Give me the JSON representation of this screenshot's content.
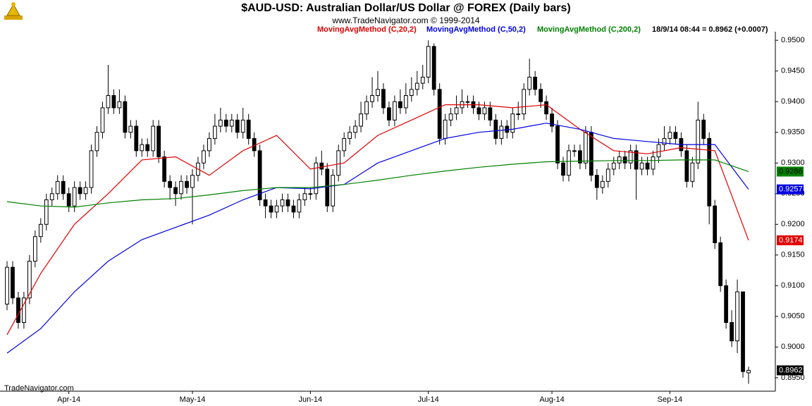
{
  "chart_data": {
    "type": "candlestick",
    "title": "$AUD-USD:  Australian Dollar/US Dollar @ FOREX  (Daily bars)",
    "subtitle": "www.TradeNavigator.com © 1999-2014",
    "quote": "18/9/14 08:44 = 0.8962 (+0.0007)",
    "footer": "TradeNavigator.com",
    "up_color": "#ffffff",
    "down_color": "#000000",
    "categories": [
      null,
      null,
      null,
      null,
      null,
      null,
      null,
      null,
      null,
      null,
      null,
      "Apr-14",
      null,
      null,
      null,
      null,
      null,
      null,
      null,
      null,
      null,
      null,
      null,
      null,
      null,
      null,
      null,
      null,
      null,
      null,
      null,
      null,
      null,
      "May-14",
      null,
      null,
      null,
      null,
      null,
      null,
      null,
      null,
      null,
      null,
      null,
      null,
      null,
      null,
      null,
      null,
      null,
      null,
      null,
      null,
      "Jun-14",
      null,
      null,
      null,
      null,
      null,
      null,
      null,
      null,
      null,
      null,
      null,
      null,
      null,
      null,
      null,
      null,
      null,
      null,
      null,
      null,
      "Jul-14",
      null,
      null,
      null,
      null,
      null,
      null,
      null,
      null,
      null,
      null,
      null,
      null,
      null,
      null,
      null,
      null,
      null,
      null,
      null,
      null,
      null,
      "Aug-14",
      null,
      null,
      null,
      null,
      null,
      null,
      null,
      null,
      null,
      null,
      null,
      null,
      null,
      null,
      null,
      null,
      null,
      null,
      null,
      null,
      "Sep-14",
      null,
      null,
      null,
      null,
      null,
      null,
      null,
      null,
      null,
      null,
      null,
      null,
      null,
      null
    ],
    "ohlc": [
      [
        0.907,
        0.914,
        0.906,
        0.913
      ],
      [
        0.913,
        0.914,
        0.907,
        0.908
      ],
      [
        0.908,
        0.909,
        0.903,
        0.904
      ],
      [
        0.904,
        0.909,
        0.903,
        0.908
      ],
      [
        0.908,
        0.915,
        0.907,
        0.914
      ],
      [
        0.914,
        0.919,
        0.913,
        0.918
      ],
      [
        0.918,
        0.921,
        0.917,
        0.92
      ],
      [
        0.92,
        0.925,
        0.919,
        0.924
      ],
      [
        0.924,
        0.926,
        0.923,
        0.925
      ],
      [
        0.925,
        0.928,
        0.924,
        0.927
      ],
      [
        0.927,
        0.928,
        0.924,
        0.925
      ],
      [
        0.925,
        0.926,
        0.922,
        0.923
      ],
      [
        0.923,
        0.927,
        0.922,
        0.926
      ],
      [
        0.926,
        0.927,
        0.924,
        0.925
      ],
      [
        0.925,
        0.927,
        0.924,
        0.926
      ],
      [
        0.926,
        0.933,
        0.925,
        0.932
      ],
      [
        0.932,
        0.936,
        0.931,
        0.935
      ],
      [
        0.935,
        0.94,
        0.934,
        0.939
      ],
      [
        0.939,
        0.946,
        0.938,
        0.941
      ],
      [
        0.941,
        0.942,
        0.938,
        0.939
      ],
      [
        0.939,
        0.942,
        0.938,
        0.94
      ],
      [
        0.94,
        0.941,
        0.934,
        0.935
      ],
      [
        0.935,
        0.937,
        0.934,
        0.936
      ],
      [
        0.936,
        0.937,
        0.931,
        0.932
      ],
      [
        0.932,
        0.934,
        0.931,
        0.933
      ],
      [
        0.933,
        0.934,
        0.931,
        0.932
      ],
      [
        0.932,
        0.937,
        0.931,
        0.936
      ],
      [
        0.936,
        0.937,
        0.93,
        0.931
      ],
      [
        0.931,
        0.932,
        0.926,
        0.927
      ],
      [
        0.927,
        0.928,
        0.924,
        0.926
      ],
      [
        0.926,
        0.927,
        0.923,
        0.925
      ],
      [
        0.925,
        0.928,
        0.924,
        0.927
      ],
      [
        0.927,
        0.928,
        0.925,
        0.926
      ],
      [
        0.926,
        0.929,
        0.92,
        0.928
      ],
      [
        0.928,
        0.931,
        0.927,
        0.93
      ],
      [
        0.93,
        0.933,
        0.929,
        0.932
      ],
      [
        0.932,
        0.935,
        0.931,
        0.934
      ],
      [
        0.934,
        0.938,
        0.933,
        0.936
      ],
      [
        0.936,
        0.939,
        0.935,
        0.937
      ],
      [
        0.937,
        0.938,
        0.935,
        0.936
      ],
      [
        0.936,
        0.938,
        0.935,
        0.937
      ],
      [
        0.937,
        0.938,
        0.934,
        0.935
      ],
      [
        0.935,
        0.939,
        0.934,
        0.937
      ],
      [
        0.937,
        0.938,
        0.933,
        0.934
      ],
      [
        0.934,
        0.935,
        0.931,
        0.932
      ],
      [
        0.932,
        0.933,
        0.923,
        0.924
      ],
      [
        0.924,
        0.925,
        0.921,
        0.923
      ],
      [
        0.923,
        0.924,
        0.921,
        0.922
      ],
      [
        0.922,
        0.924,
        0.921,
        0.923
      ],
      [
        0.923,
        0.925,
        0.922,
        0.924
      ],
      [
        0.924,
        0.925,
        0.922,
        0.923
      ],
      [
        0.923,
        0.924,
        0.921,
        0.922
      ],
      [
        0.922,
        0.925,
        0.921,
        0.924
      ],
      [
        0.924,
        0.926,
        0.923,
        0.925
      ],
      [
        0.925,
        0.926,
        0.924,
        0.925
      ],
      [
        0.925,
        0.931,
        0.924,
        0.93
      ],
      [
        0.93,
        0.932,
        0.928,
        0.929
      ],
      [
        0.929,
        0.93,
        0.922,
        0.923
      ],
      [
        0.923,
        0.929,
        0.922,
        0.928
      ],
      [
        0.928,
        0.933,
        0.927,
        0.932
      ],
      [
        0.932,
        0.935,
        0.931,
        0.934
      ],
      [
        0.934,
        0.936,
        0.933,
        0.935
      ],
      [
        0.935,
        0.937,
        0.934,
        0.936
      ],
      [
        0.936,
        0.94,
        0.935,
        0.938
      ],
      [
        0.938,
        0.941,
        0.937,
        0.94
      ],
      [
        0.94,
        0.944,
        0.939,
        0.941
      ],
      [
        0.941,
        0.945,
        0.94,
        0.942
      ],
      [
        0.942,
        0.943,
        0.938,
        0.939
      ],
      [
        0.939,
        0.94,
        0.936,
        0.937
      ],
      [
        0.937,
        0.941,
        0.936,
        0.94
      ],
      [
        0.94,
        0.942,
        0.938,
        0.939
      ],
      [
        0.939,
        0.943,
        0.938,
        0.941
      ],
      [
        0.941,
        0.944,
        0.94,
        0.942
      ],
      [
        0.942,
        0.945,
        0.941,
        0.943
      ],
      [
        0.943,
        0.946,
        0.942,
        0.944
      ],
      [
        0.944,
        0.95,
        0.943,
        0.949
      ],
      [
        0.949,
        0.9495,
        0.941,
        0.942
      ],
      [
        0.942,
        0.943,
        0.933,
        0.934
      ],
      [
        0.934,
        0.938,
        0.933,
        0.937
      ],
      [
        0.937,
        0.939,
        0.936,
        0.938
      ],
      [
        0.938,
        0.941,
        0.937,
        0.939
      ],
      [
        0.939,
        0.942,
        0.938,
        0.94
      ],
      [
        0.94,
        0.941,
        0.939,
        0.94
      ],
      [
        0.94,
        0.941,
        0.938,
        0.939
      ],
      [
        0.939,
        0.94,
        0.937,
        0.938
      ],
      [
        0.938,
        0.94,
        0.937,
        0.939
      ],
      [
        0.939,
        0.94,
        0.936,
        0.937
      ],
      [
        0.937,
        0.938,
        0.933,
        0.934
      ],
      [
        0.934,
        0.937,
        0.933,
        0.936
      ],
      [
        0.936,
        0.937,
        0.934,
        0.935
      ],
      [
        0.935,
        0.939,
        0.934,
        0.938
      ],
      [
        0.938,
        0.94,
        0.937,
        0.938
      ],
      [
        0.938,
        0.943,
        0.937,
        0.942
      ],
      [
        0.942,
        0.947,
        0.941,
        0.944
      ],
      [
        0.944,
        0.945,
        0.941,
        0.942
      ],
      [
        0.942,
        0.943,
        0.939,
        0.94
      ],
      [
        0.94,
        0.941,
        0.937,
        0.938
      ],
      [
        0.938,
        0.939,
        0.935,
        0.936
      ],
      [
        0.936,
        0.937,
        0.929,
        0.93
      ],
      [
        0.93,
        0.931,
        0.927,
        0.928
      ],
      [
        0.928,
        0.933,
        0.927,
        0.932
      ],
      [
        0.932,
        0.933,
        0.931,
        0.932
      ],
      [
        0.932,
        0.933,
        0.929,
        0.93
      ],
      [
        0.93,
        0.936,
        0.929,
        0.935
      ],
      [
        0.935,
        0.936,
        0.927,
        0.928
      ],
      [
        0.928,
        0.929,
        0.924,
        0.926
      ],
      [
        0.926,
        0.928,
        0.925,
        0.927
      ],
      [
        0.927,
        0.93,
        0.926,
        0.929
      ],
      [
        0.929,
        0.931,
        0.928,
        0.93
      ],
      [
        0.93,
        0.932,
        0.929,
        0.931
      ],
      [
        0.931,
        0.932,
        0.929,
        0.93
      ],
      [
        0.93,
        0.933,
        0.929,
        0.932
      ],
      [
        0.932,
        0.933,
        0.924,
        0.929
      ],
      [
        0.929,
        0.931,
        0.928,
        0.93
      ],
      [
        0.93,
        0.931,
        0.928,
        0.929
      ],
      [
        0.929,
        0.932,
        0.928,
        0.931
      ],
      [
        0.931,
        0.934,
        0.93,
        0.933
      ],
      [
        0.933,
        0.936,
        0.932,
        0.934
      ],
      [
        0.934,
        0.936,
        0.933,
        0.935
      ],
      [
        0.935,
        0.936,
        0.933,
        0.934
      ],
      [
        0.934,
        0.935,
        0.931,
        0.932
      ],
      [
        0.932,
        0.933,
        0.926,
        0.927
      ],
      [
        0.927,
        0.931,
        0.926,
        0.93
      ],
      [
        0.93,
        0.94,
        0.929,
        0.937
      ],
      [
        0.937,
        0.938,
        0.933,
        0.934
      ],
      [
        0.934,
        0.935,
        0.92,
        0.923
      ],
      [
        0.923,
        0.924,
        0.916,
        0.917
      ],
      [
        0.917,
        0.918,
        0.909,
        0.91
      ],
      [
        0.91,
        0.911,
        0.903,
        0.904
      ],
      [
        0.904,
        0.906,
        0.9,
        0.901
      ],
      [
        0.901,
        0.911,
        0.899,
        0.909
      ],
      [
        0.909,
        0.909,
        0.895,
        0.896
      ],
      [
        0.8958,
        0.8968,
        0.894,
        0.8962
      ]
    ],
    "series": [
      {
        "name": "MovingAvgMethod (C,20,2)",
        "color": "#e00000",
        "x": [
          0,
          6,
          12,
          18,
          24,
          30,
          36,
          42,
          48,
          54,
          60,
          66,
          72,
          78,
          84,
          90,
          96,
          102,
          108,
          114,
          120,
          126,
          132
        ],
        "values": [
          0.902,
          0.912,
          0.92,
          0.925,
          0.9305,
          0.931,
          0.928,
          0.932,
          0.9345,
          0.929,
          0.93,
          0.9345,
          0.937,
          0.9395,
          0.9395,
          0.939,
          0.9395,
          0.9355,
          0.932,
          0.9315,
          0.9325,
          0.932,
          0.9174
        ]
      },
      {
        "name": "MovingAvgMethod (C,50,2)",
        "color": "#0000e0",
        "x": [
          0,
          6,
          12,
          18,
          24,
          30,
          36,
          42,
          48,
          54,
          60,
          66,
          72,
          78,
          84,
          90,
          96,
          102,
          108,
          114,
          120,
          126,
          132
        ],
        "values": [
          0.899,
          0.903,
          0.909,
          0.914,
          0.9175,
          0.9195,
          0.9215,
          0.924,
          0.926,
          0.9258,
          0.9265,
          0.93,
          0.932,
          0.934,
          0.935,
          0.9355,
          0.9365,
          0.9355,
          0.934,
          0.9335,
          0.933,
          0.933,
          0.9257
        ]
      },
      {
        "name": "MovingAvgMethod (C,200,2)",
        "color": "#008000",
        "x": [
          0,
          6,
          12,
          18,
          24,
          30,
          36,
          42,
          48,
          54,
          60,
          66,
          72,
          78,
          84,
          90,
          96,
          102,
          108,
          114,
          120,
          126,
          132
        ],
        "values": [
          0.9237,
          0.923,
          0.9228,
          0.9235,
          0.924,
          0.9242,
          0.9248,
          0.9255,
          0.926,
          0.926,
          0.9265,
          0.9272,
          0.928,
          0.9287,
          0.9293,
          0.9298,
          0.9302,
          0.9303,
          0.9304,
          0.9304,
          0.9305,
          0.9305,
          0.9286
        ]
      }
    ],
    "ylim": [
      0.8928,
      0.9514
    ],
    "yticks": [
      {
        "value": 0.895,
        "label": "0.8950"
      },
      {
        "value": 0.9,
        "label": "0.9000"
      },
      {
        "value": 0.905,
        "label": "0.9050"
      },
      {
        "value": 0.91,
        "label": "0.9100"
      },
      {
        "value": 0.915,
        "label": "0.9150"
      },
      {
        "value": 0.92,
        "label": "0.9200"
      },
      {
        "value": 0.925,
        "label": "0.9250"
      },
      {
        "value": 0.93,
        "label": "0.9300"
      },
      {
        "value": 0.935,
        "label": "0.9350"
      },
      {
        "value": 0.94,
        "label": "0.9400"
      },
      {
        "value": 0.945,
        "label": "0.9450"
      },
      {
        "value": 0.95,
        "label": "0.9500"
      }
    ],
    "grid": false
  }
}
